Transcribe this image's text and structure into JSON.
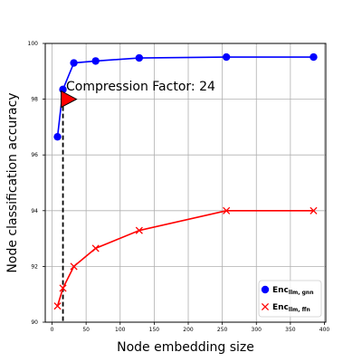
{
  "chart_data": {
    "type": "line",
    "xlabel": "Node embedding size",
    "ylabel": "Node classification accuracy",
    "xlim": [
      -10,
      402
    ],
    "ylim": [
      90,
      100
    ],
    "xticks": [
      0,
      50,
      100,
      150,
      200,
      250,
      300,
      350,
      400
    ],
    "yticks": [
      90,
      92,
      94,
      96,
      98,
      100
    ],
    "grid": true,
    "legend_position": "lower-right",
    "series": [
      {
        "name_main": "Enc",
        "name_sub": "llm, gnn",
        "color": "#0000ff",
        "marker": "circle",
        "x": [
          8,
          16,
          32,
          64,
          128,
          256,
          384
        ],
        "y": [
          96.65,
          98.35,
          99.3,
          99.37,
          99.48,
          99.51,
          99.51
        ]
      },
      {
        "name_main": "Enc",
        "name_sub": "llm, ffn",
        "color": "#ff0000",
        "marker": "x",
        "x": [
          8,
          16,
          32,
          64,
          128,
          256,
          384
        ],
        "y": [
          90.58,
          91.22,
          92.0,
          92.65,
          93.29,
          94.0,
          94.0
        ]
      }
    ],
    "annotations": [
      {
        "text": "Compression Factor: 24",
        "x": 16,
        "y": 98.0,
        "marker": "triangle-right",
        "marker_color": "#ff0000",
        "vline_x": 16,
        "vline_style": "dashed"
      }
    ]
  }
}
